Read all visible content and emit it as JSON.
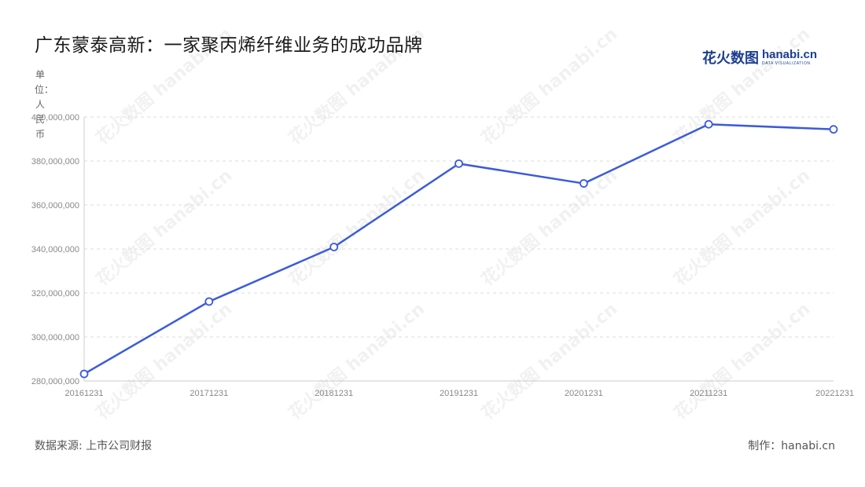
{
  "header": {
    "title": "广东蒙泰高新：一家聚丙烯纤维业务的成功品牌",
    "logo_cn": "花火数图",
    "logo_en": "hanabi.cn",
    "logo_sub": "DATA VISUALIZATION"
  },
  "unit_label": "单位：人民币",
  "footer": {
    "source": "数据来源: 上市公司财报",
    "maker": "制作：hanabi.cn"
  },
  "watermark": "花火数图 hanabi.cn",
  "colors": {
    "line": "#3b5bdb",
    "grid": "#dddddd",
    "axis": "#cccccc"
  },
  "chart_data": {
    "type": "line",
    "categories": [
      "20161231",
      "20171231",
      "20181231",
      "20191231",
      "20201231",
      "20211231",
      "20221231"
    ],
    "series": [
      {
        "values": [
          283200000,
          316100000,
          340900000,
          378800000,
          369800000,
          396700000,
          394400000
        ]
      }
    ],
    "ylim": [
      280000000,
      400000000
    ],
    "yticks": [
      "280,000,000",
      "300,000,000",
      "320,000,000",
      "340,000,000",
      "360,000,000",
      "380,000,000",
      "400,000,000"
    ],
    "ylabel": "单位：人民币",
    "grid": true,
    "legend": "none"
  }
}
